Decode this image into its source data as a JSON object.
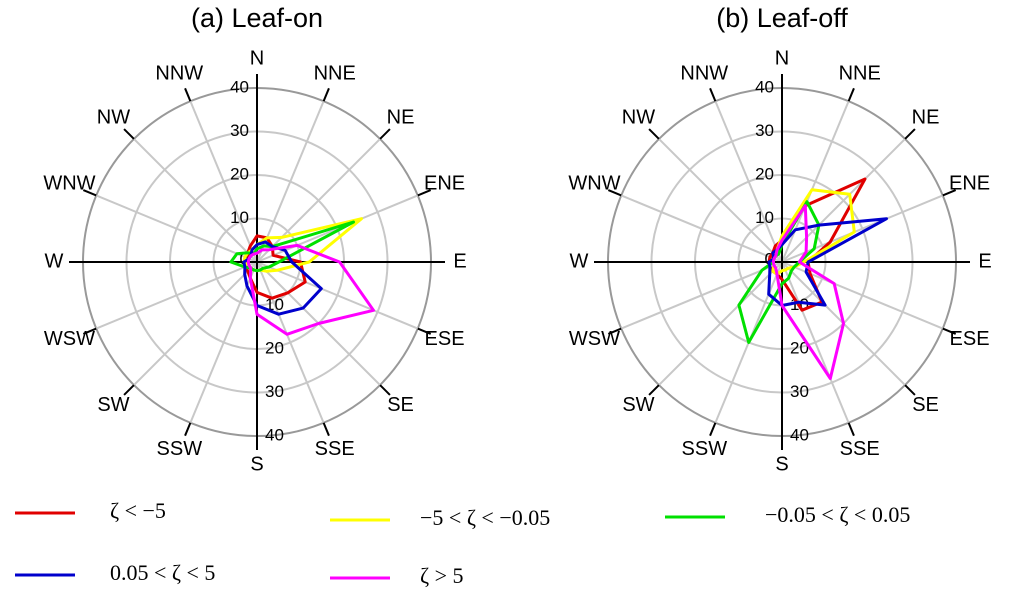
{
  "chart_data": [
    {
      "type": "radar",
      "title": "(a) Leaf-on",
      "categories": [
        "N",
        "NNE",
        "NE",
        "ENE",
        "E",
        "ESE",
        "SE",
        "SSE",
        "S",
        "SSW",
        "SW",
        "WSW",
        "W",
        "WNW",
        "NW",
        "NNW"
      ],
      "rlim": [
        0,
        40
      ],
      "rticks": [
        0,
        10,
        20,
        30,
        40
      ],
      "grid": true,
      "series": [
        {
          "name": "ζ < −5",
          "color": "#e00000",
          "values": [
            6,
            6,
            5,
            4,
            10,
            12,
            10,
            9,
            7,
            4,
            3,
            3,
            3,
            2,
            3,
            4
          ]
        },
        {
          "name": "−5 < ζ < −0.05",
          "color": "#ffff00",
          "values": [
            4,
            6,
            8,
            26,
            12,
            5,
            3,
            2,
            2,
            2,
            2,
            2,
            3,
            3,
            3,
            3
          ]
        },
        {
          "name": "−0.05 < ζ < 0.05",
          "color": "#00e000",
          "values": [
            3,
            4,
            5,
            24,
            5,
            3,
            2,
            2,
            2,
            2,
            2,
            3,
            6,
            5,
            3,
            2
          ]
        },
        {
          "name": "0.05 < ζ < 5",
          "color": "#0000cc",
          "values": [
            4,
            5,
            5,
            7,
            8,
            16,
            15,
            13,
            10,
            6,
            4,
            3,
            3,
            2,
            2,
            3
          ]
        },
        {
          "name": "ζ > 5",
          "color": "#ff00ff",
          "values": [
            2,
            3,
            4,
            10,
            19,
            29,
            20,
            18,
            12,
            4,
            2,
            2,
            2,
            2,
            2,
            2
          ]
        }
      ]
    },
    {
      "type": "radar",
      "title": "(b) Leaf-off",
      "categories": [
        "N",
        "NNE",
        "NE",
        "ENE",
        "E",
        "ESE",
        "SE",
        "SSE",
        "S",
        "SSW",
        "SW",
        "WSW",
        "W",
        "WNW",
        "NW",
        "NNW"
      ],
      "rlim": [
        0,
        40
      ],
      "rticks": [
        0,
        10,
        20,
        30,
        40
      ],
      "grid": true,
      "series": [
        {
          "color": "#e00000",
          "values": [
            5,
            14,
            27,
            12,
            6,
            7,
            13,
            12,
            4,
            3,
            3,
            3,
            3,
            3,
            3,
            4
          ]
        },
        {
          "color": "#ffff00",
          "values": [
            6,
            18,
            22,
            18,
            5,
            3,
            2,
            2,
            2,
            3,
            3,
            2,
            2,
            2,
            2,
            3
          ]
        },
        {
          "color": "#00e000",
          "values": [
            4,
            15,
            12,
            8,
            4,
            3,
            3,
            4,
            5,
            20,
            14,
            5,
            2,
            2,
            2,
            2
          ]
        },
        {
          "color": "#0000cc",
          "values": [
            4,
            8,
            12,
            26,
            6,
            6,
            14,
            10,
            10,
            8,
            4,
            3,
            3,
            2,
            3,
            3
          ]
        },
        {
          "color": "#ff00ff",
          "values": [
            5,
            14,
            8,
            6,
            4,
            13,
            20,
            29,
            10,
            3,
            2,
            2,
            2,
            2,
            2,
            3
          ]
        }
      ]
    }
  ]
}
